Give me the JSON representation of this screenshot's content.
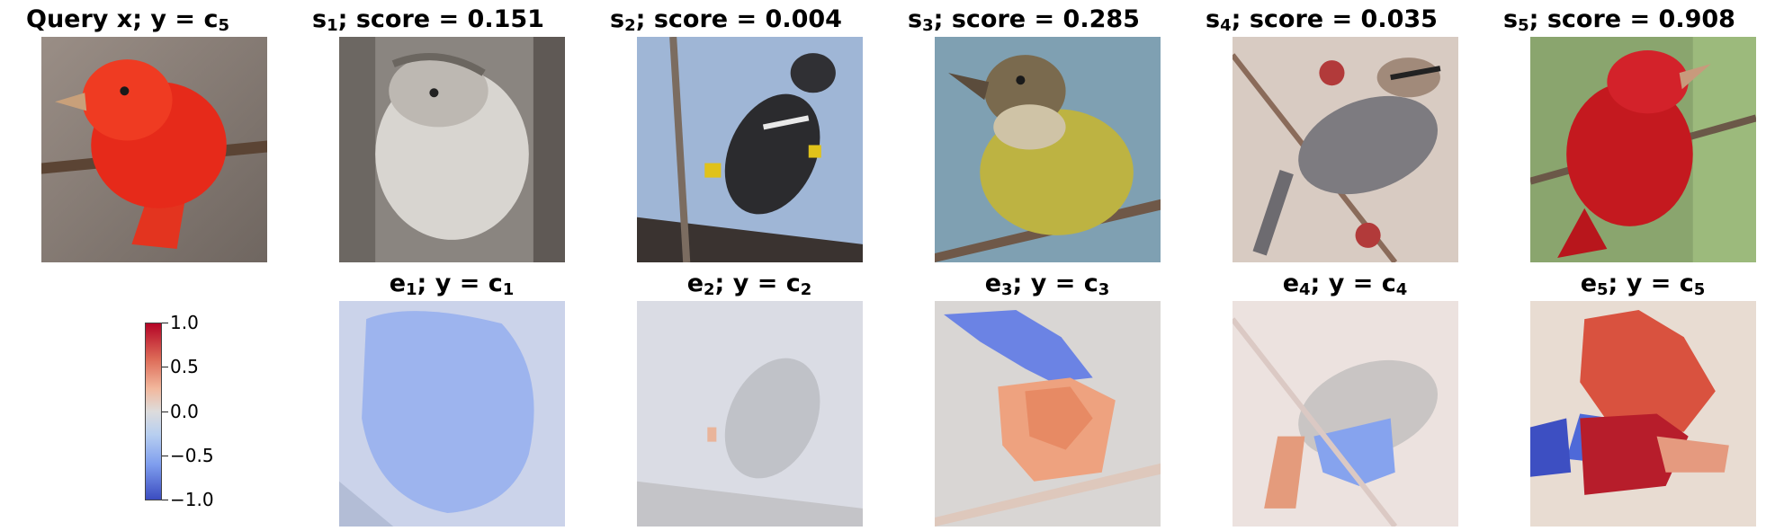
{
  "top_row": [
    {
      "prefix": "Query x; y = c",
      "sub": "5",
      "suffix": ""
    },
    {
      "prefix": "s",
      "sub": "1",
      "suffix": "; score = 0.151"
    },
    {
      "prefix": "s",
      "sub": "2",
      "suffix": "; score = 0.004"
    },
    {
      "prefix": "s",
      "sub": "3",
      "suffix": "; score = 0.285"
    },
    {
      "prefix": "s",
      "sub": "4",
      "suffix": "; score = 0.035"
    },
    {
      "prefix": "s",
      "sub": "5",
      "suffix": "; score = 0.908"
    }
  ],
  "bottom_row": [
    {
      "e": "e",
      "sub": "1",
      "mid": "; y = c",
      "sub2": "1"
    },
    {
      "e": "e",
      "sub": "2",
      "mid": "; y = c",
      "sub2": "2"
    },
    {
      "e": "e",
      "sub": "3",
      "mid": "; y = c",
      "sub2": "3"
    },
    {
      "e": "e",
      "sub": "4",
      "mid": "; y = c",
      "sub2": "4"
    },
    {
      "e": "e",
      "sub": "5",
      "mid": "; y = c",
      "sub2": "5"
    }
  ],
  "colorbar": {
    "colormap": "coolwarm",
    "range": [
      -1.0,
      1.0
    ],
    "ticks": [
      "1.0",
      "0.5",
      "0.0",
      "−0.5",
      "−1.0"
    ],
    "tick_values": [
      1.0,
      0.5,
      0.0,
      -0.5,
      -1.0
    ]
  },
  "colors": {
    "positive": "#b40426",
    "neutral": "#dddcdc",
    "negative": "#3b4cc0"
  }
}
